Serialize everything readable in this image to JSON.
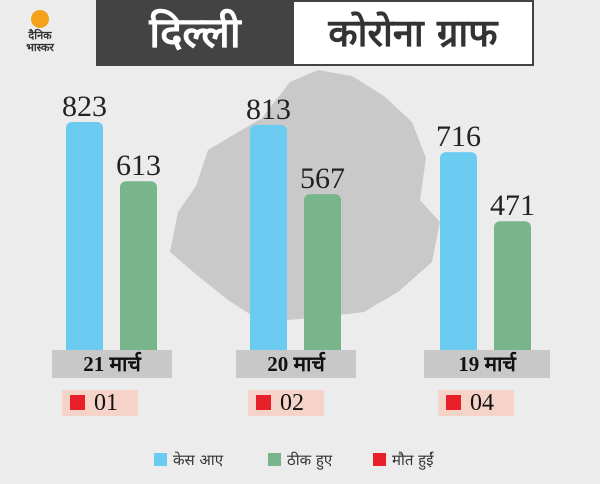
{
  "header": {
    "logo_text_line1": "दैनिक",
    "logo_text_line2": "भास्कर",
    "title_left": "दिल्ली",
    "title_right": "कोरोना ग्राफ"
  },
  "colors": {
    "cases": "#6ccbf1",
    "recovered": "#79b58b",
    "deaths": "#e8202a"
  },
  "chart_data": {
    "type": "bar",
    "categories": [
      "21 मार्च",
      "20 मार्च",
      "19 मार्च"
    ],
    "series": [
      {
        "name": "केस आए",
        "values": [
          823,
          813,
          716
        ]
      },
      {
        "name": "ठीक हुए",
        "values": [
          613,
          567,
          471
        ]
      },
      {
        "name": "मौत हुईं",
        "values": [
          1,
          2,
          4
        ]
      }
    ],
    "death_labels": [
      "01",
      "02",
      "04"
    ],
    "title": "",
    "xlabel": "",
    "ylabel": "",
    "legend_position": "bottom",
    "grid": false
  },
  "legend": {
    "cases_label": "केस आए",
    "recovered_label": "ठीक हुए",
    "deaths_label": "मौत हुईं"
  }
}
